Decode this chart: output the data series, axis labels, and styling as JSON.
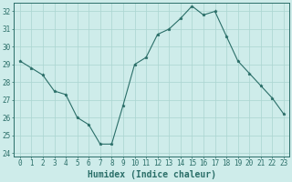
{
  "x": [
    0,
    1,
    2,
    3,
    4,
    5,
    6,
    7,
    8,
    9,
    10,
    11,
    12,
    13,
    14,
    15,
    16,
    17,
    18,
    19,
    20,
    21,
    22,
    23
  ],
  "y": [
    29.2,
    28.8,
    28.4,
    27.5,
    27.3,
    26.0,
    25.6,
    24.5,
    24.5,
    26.7,
    29.0,
    29.4,
    30.7,
    31.0,
    31.6,
    32.3,
    31.8,
    32.0,
    30.6,
    29.2,
    28.5,
    27.8,
    27.1,
    26.2
  ],
  "line_color": "#2a6e68",
  "bg_color": "#ceecea",
  "grid_color": "#aad4d0",
  "xlabel": "Humidex (Indice chaleur)",
  "ylim": [
    23.8,
    32.5
  ],
  "yticks": [
    24,
    25,
    26,
    27,
    28,
    29,
    30,
    31,
    32
  ],
  "xlim": [
    -0.5,
    23.5
  ],
  "xticks": [
    0,
    1,
    2,
    3,
    4,
    5,
    6,
    7,
    8,
    9,
    10,
    11,
    12,
    13,
    14,
    15,
    16,
    17,
    18,
    19,
    20,
    21,
    22,
    23
  ],
  "tick_color": "#2a6e68",
  "font_color": "#2a6e68",
  "font_size": 5.5,
  "label_font_size": 7.0
}
